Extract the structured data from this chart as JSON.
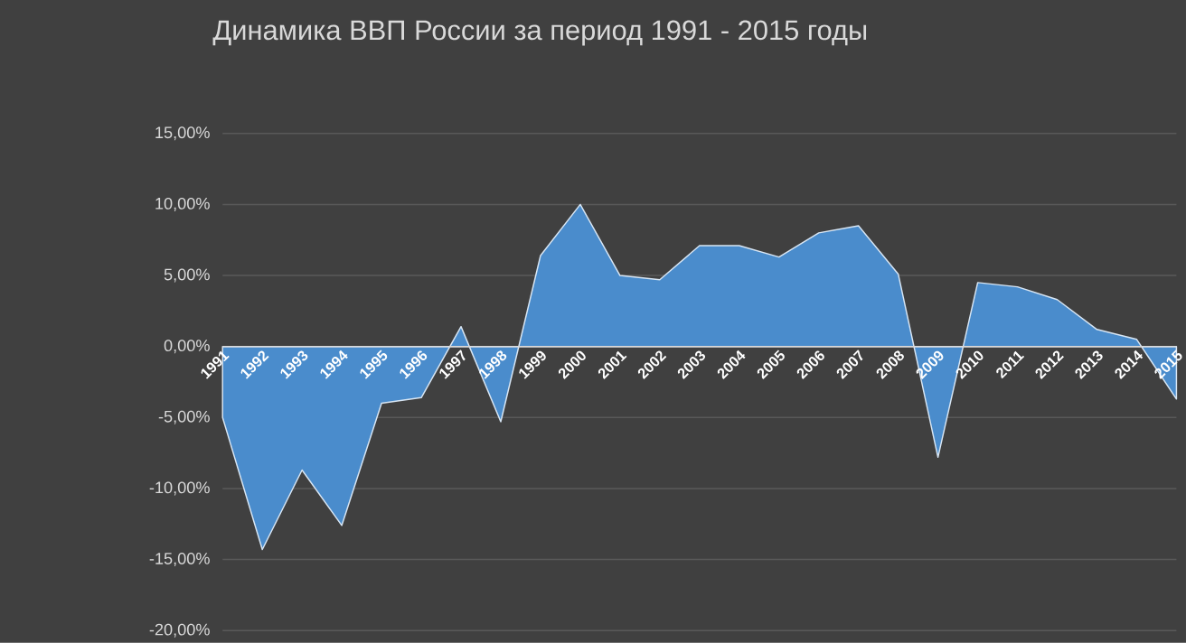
{
  "chart_data": {
    "type": "area",
    "title": "Динамика ВВП России за период 1991 - 2015 годы",
    "categories": [
      "1991",
      "1992",
      "1993",
      "1994",
      "1995",
      "1996",
      "1997",
      "1998",
      "1999",
      "2000",
      "2001",
      "2002",
      "2003",
      "2004",
      "2005",
      "2006",
      "2007",
      "2008",
      "2009",
      "2010",
      "2011",
      "2012",
      "2013",
      "2014",
      "2015"
    ],
    "values": [
      -5.0,
      -14.3,
      -8.7,
      -12.6,
      -4.0,
      -3.6,
      1.4,
      -5.3,
      6.4,
      10.0,
      5.0,
      4.7,
      7.1,
      7.1,
      6.3,
      8.0,
      8.5,
      5.1,
      -7.8,
      4.5,
      4.2,
      3.3,
      1.2,
      0.5,
      -3.7
    ],
    "color": "#4a8ccc",
    "ylim": [
      -20,
      15
    ],
    "yticks": [
      {
        "value": -20,
        "label": "-20,00%"
      },
      {
        "value": -15,
        "label": "-15,00%"
      },
      {
        "value": -10,
        "label": "-10,00%"
      },
      {
        "value": -5,
        "label": "-5,00%"
      },
      {
        "value": 0,
        "label": "0,00%"
      },
      {
        "value": 5,
        "label": "5,00%"
      },
      {
        "value": 10,
        "label": "10,00%"
      },
      {
        "value": 15,
        "label": "15,00%"
      }
    ],
    "grid": "y"
  }
}
